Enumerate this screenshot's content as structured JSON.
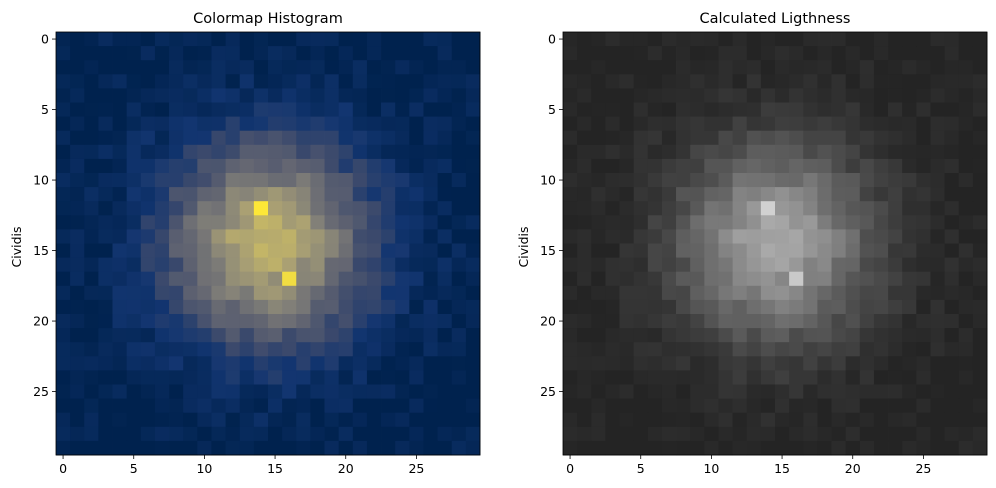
{
  "chart_data": [
    {
      "type": "heatmap",
      "title": "Colormap Histogram",
      "xlabel": "",
      "ylabel": "Cividis",
      "colormap": "cividis",
      "rows": 30,
      "cols": 30,
      "xlim": [
        -0.5,
        29.5
      ],
      "ylim": [
        29.5,
        -0.5
      ],
      "xticks": [
        0,
        5,
        10,
        15,
        20,
        25
      ],
      "yticks": [
        0,
        5,
        10,
        15,
        20,
        25
      ],
      "grid": false,
      "distribution": {
        "center": [
          14.5,
          14.5
        ],
        "sigma": 5.2,
        "peak_value": 1.0,
        "noise": 0.07
      },
      "notable_cells": [
        {
          "row": 12,
          "col": 14,
          "value": 1.0
        },
        {
          "row": 17,
          "col": 16,
          "value": 0.97
        }
      ]
    },
    {
      "type": "heatmap",
      "title": "Calculated Ligthness",
      "xlabel": "",
      "ylabel": "Cividis",
      "colormap": "gray",
      "rows": 30,
      "cols": 30,
      "xlim": [
        -0.5,
        29.5
      ],
      "ylim": [
        29.5,
        -0.5
      ],
      "xticks": [
        0,
        5,
        10,
        15,
        20,
        25
      ],
      "yticks": [
        0,
        5,
        10,
        15,
        20,
        25
      ],
      "grid": false,
      "lightness_range": [
        0.11,
        0.85
      ]
    }
  ]
}
